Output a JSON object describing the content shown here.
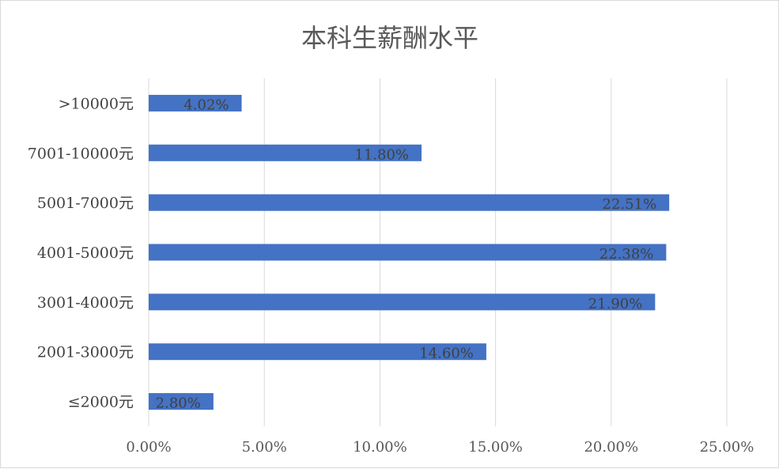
{
  "chart_data": {
    "type": "bar",
    "orientation": "horizontal",
    "title": "本科生薪酬水平",
    "categories": [
      ">10000元",
      "7001-10000元",
      "5001-7000元",
      "4001-5000元",
      "3001-4000元",
      "2001-3000元",
      "≤2000元"
    ],
    "values": [
      4.02,
      11.8,
      22.51,
      22.38,
      21.9,
      14.6,
      2.8
    ],
    "value_labels": [
      "4.02%",
      "11.80%",
      "22.51%",
      "22.38%",
      "21.90%",
      "14.60%",
      "2.80%"
    ],
    "x_ticks": [
      0,
      5,
      10,
      15,
      20,
      25
    ],
    "x_tick_labels": [
      "0.00%",
      "5.00%",
      "10.00%",
      "15.00%",
      "20.00%",
      "25.00%"
    ],
    "xlim": [
      0,
      25
    ],
    "grid": "vertical",
    "legend": "none",
    "bar_color": "#4472c4",
    "grid_color": "#d9d9d9"
  }
}
